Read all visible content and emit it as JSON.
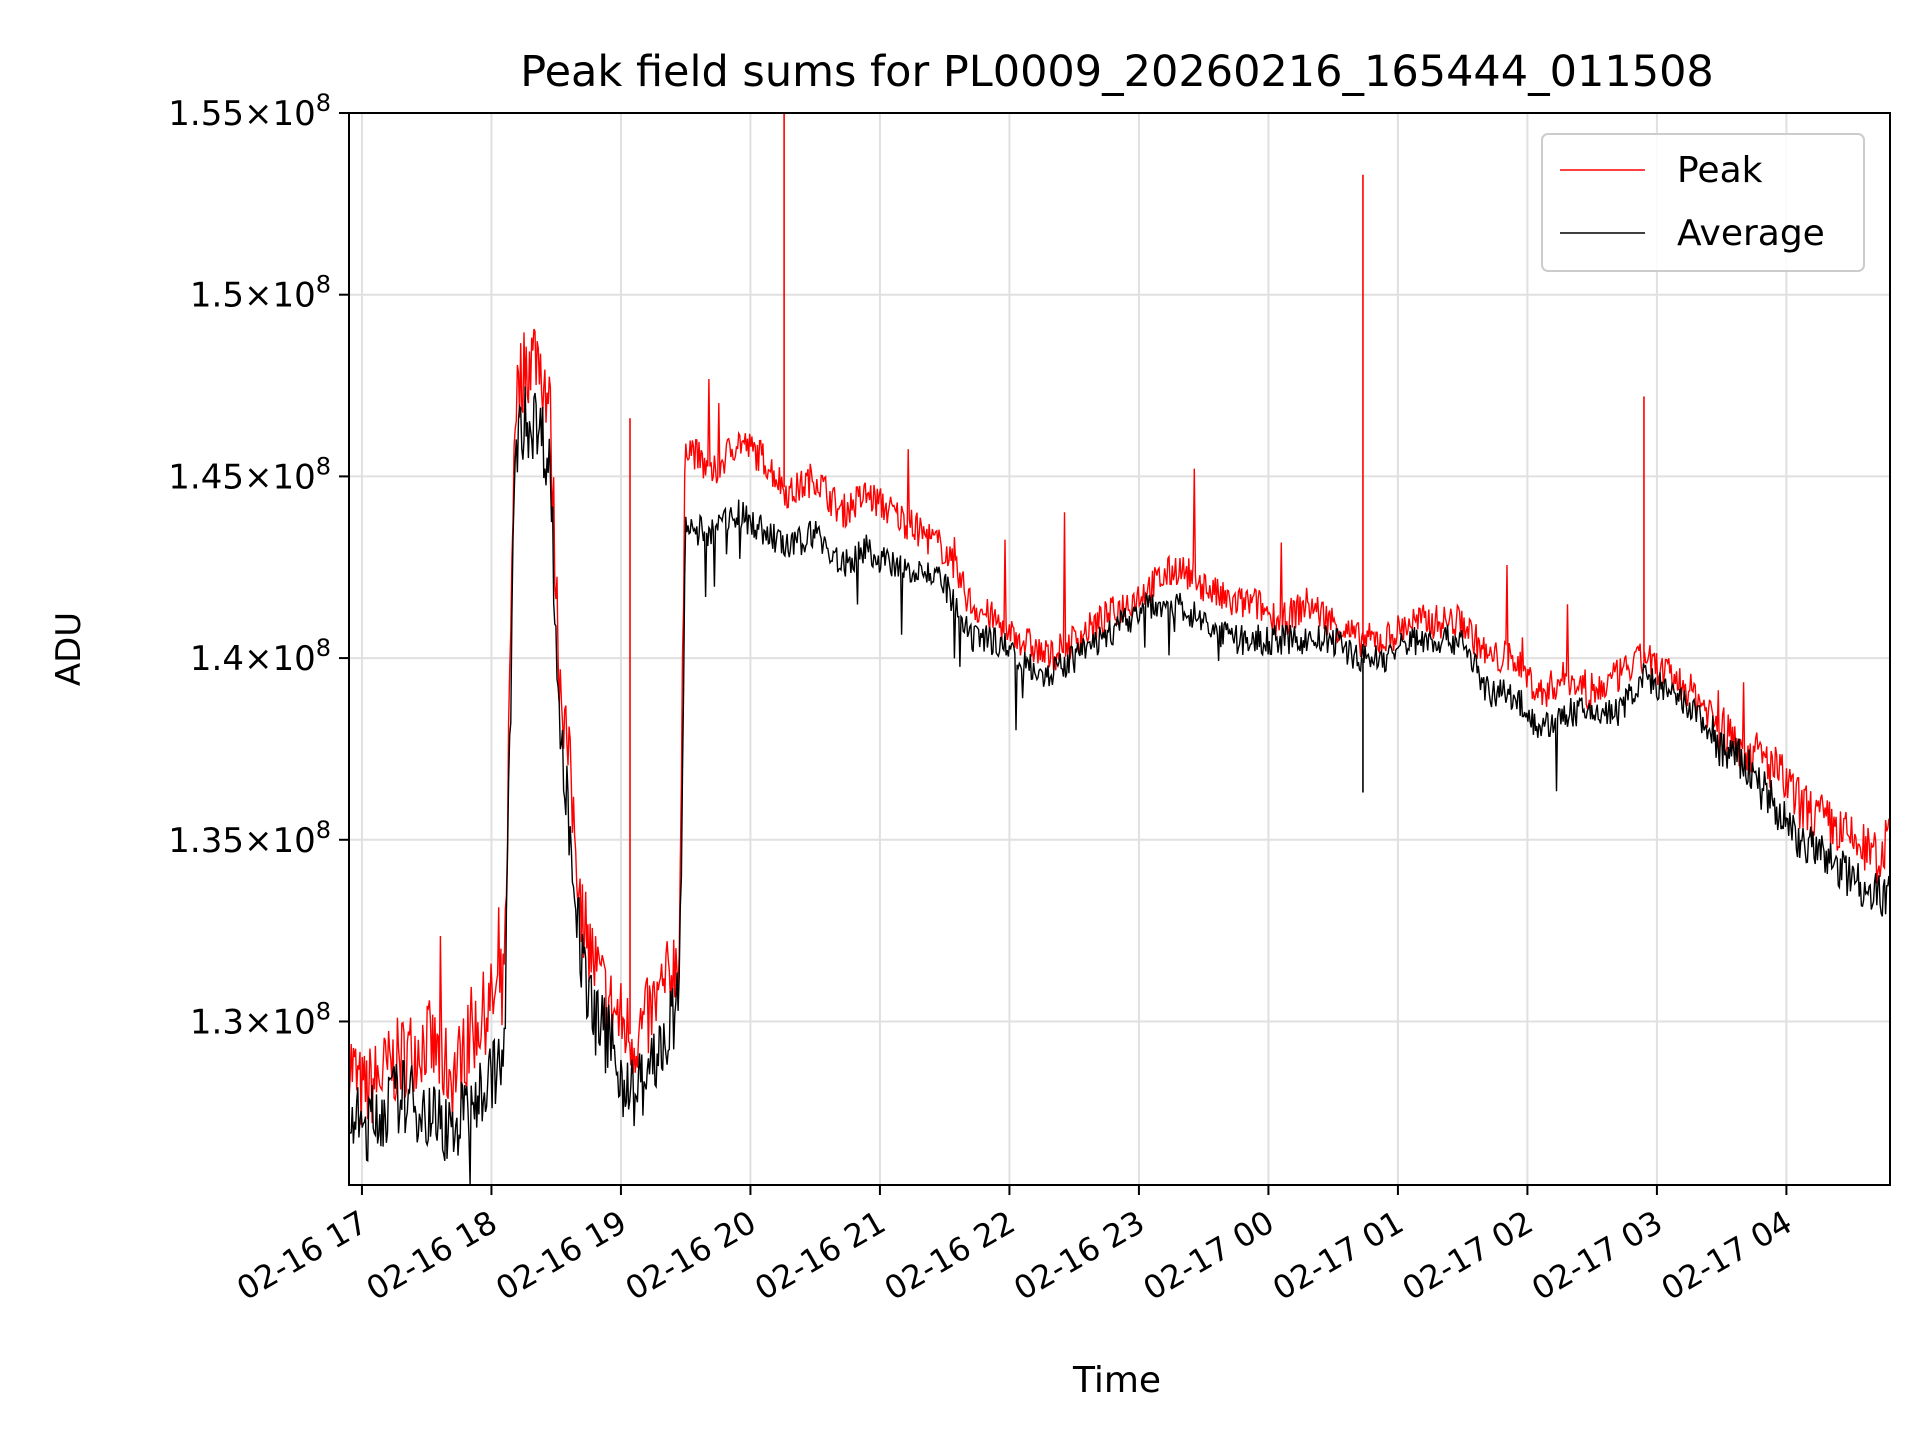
{
  "chart_data": {
    "type": "line",
    "title": "Peak field sums for PL0009_20260216_165444_011508",
    "xlabel": "Time",
    "ylabel": "ADU",
    "x_start": "2026-02-16 16:54",
    "x_end": "2026-02-17 04:48",
    "xlim_hours_since_start": [
      0,
      11.9
    ],
    "ylim": [
      125500000,
      155000000
    ],
    "grid": true,
    "legend_position": "top-right",
    "x_ticks": [
      "02-16 17",
      "02-16 18",
      "02-16 19",
      "02-16 20",
      "02-16 21",
      "02-16 22",
      "02-16 23",
      "02-17 00",
      "02-17 01",
      "02-17 02",
      "02-17 03",
      "02-17 04"
    ],
    "y_ticks": [
      {
        "value": 130000000,
        "mantissa": "1.3",
        "exp": "8"
      },
      {
        "value": 135000000,
        "mantissa": "1.35",
        "exp": "8"
      },
      {
        "value": 140000000,
        "mantissa": "1.4",
        "exp": "8"
      },
      {
        "value": 145000000,
        "mantissa": "1.45",
        "exp": "8"
      },
      {
        "value": 150000000,
        "mantissa": "1.5",
        "exp": "8"
      },
      {
        "value": 155000000,
        "mantissa": "1.55",
        "exp": "8"
      }
    ],
    "series": [
      {
        "name": "Peak",
        "color": "#ff0000",
        "x_hours": [
          0,
          0.1,
          0.25,
          0.4,
          0.6,
          0.8,
          1.0,
          1.2,
          1.28,
          1.35,
          1.45,
          1.55,
          1.62,
          1.7,
          1.8,
          1.9,
          2.0,
          2.1,
          2.2,
          2.3,
          2.45,
          2.55,
          2.6,
          2.8,
          3.0,
          3.2,
          3.4,
          3.6,
          3.8,
          4.0,
          4.2,
          4.4,
          4.6,
          4.8,
          5.0,
          5.2,
          5.4,
          5.6,
          5.8,
          6.0,
          6.2,
          6.4,
          6.6,
          6.8,
          7.0,
          7.2,
          7.4,
          7.6,
          7.8,
          8.0,
          8.2,
          8.4,
          8.6,
          8.8,
          9.0,
          9.2,
          9.4,
          9.6,
          9.8,
          10.0,
          10.2,
          10.4,
          10.6,
          10.8,
          11.0,
          11.2,
          11.4,
          11.6,
          11.8,
          11.9
        ],
        "values": [
          129000000,
          128000000,
          128500000,
          129000000,
          129500000,
          128500000,
          130000000,
          131000000,
          147000000,
          148000000,
          148500000,
          147000000,
          140000000,
          137000000,
          133000000,
          131500000,
          130500000,
          130000000,
          129500000,
          130000000,
          131000000,
          132000000,
          146000000,
          145000000,
          146000000,
          145500000,
          144500000,
          145000000,
          144000000,
          144500000,
          144000000,
          143500000,
          143000000,
          141500000,
          141000000,
          140500000,
          140000000,
          140500000,
          141000000,
          141500000,
          142000000,
          142500000,
          142000000,
          141500000,
          141500000,
          141000000,
          141500000,
          141000000,
          140500000,
          140500000,
          141000000,
          141000000,
          141000000,
          140000000,
          140000000,
          139000000,
          139500000,
          139000000,
          139500000,
          140000000,
          139500000,
          139000000,
          138000000,
          137500000,
          137000000,
          136000000,
          135500000,
          135000000,
          134500000,
          135000000
        ]
      },
      {
        "name": "Average",
        "color": "#000000",
        "x_hours": [
          0,
          0.1,
          0.25,
          0.4,
          0.6,
          0.8,
          1.0,
          1.2,
          1.28,
          1.35,
          1.45,
          1.55,
          1.62,
          1.7,
          1.8,
          1.9,
          2.0,
          2.1,
          2.2,
          2.3,
          2.45,
          2.55,
          2.6,
          2.8,
          3.0,
          3.2,
          3.4,
          3.6,
          3.8,
          4.0,
          4.2,
          4.4,
          4.6,
          4.8,
          5.0,
          5.2,
          5.4,
          5.6,
          5.8,
          6.0,
          6.2,
          6.4,
          6.6,
          6.8,
          7.0,
          7.2,
          7.4,
          7.6,
          7.8,
          8.0,
          8.2,
          8.4,
          8.6,
          8.8,
          9.0,
          9.2,
          9.4,
          9.6,
          9.8,
          10.0,
          10.2,
          10.4,
          10.6,
          10.8,
          11.0,
          11.2,
          11.4,
          11.6,
          11.8,
          11.9
        ],
        "values": [
          127500000,
          127000000,
          127500000,
          128000000,
          127500000,
          127000000,
          128000000,
          129000000,
          145500000,
          146500000,
          146500000,
          145500000,
          138500000,
          135500000,
          131500000,
          130000000,
          129500000,
          128500000,
          128000000,
          128500000,
          129500000,
          130500000,
          143500000,
          143500000,
          144000000,
          143500000,
          143000000,
          143500000,
          142500000,
          143000000,
          142500000,
          142500000,
          142000000,
          140500000,
          140500000,
          140000000,
          139500000,
          140000000,
          140500000,
          141000000,
          141500000,
          141500000,
          141000000,
          140500000,
          140500000,
          140500000,
          140500000,
          140500000,
          140000000,
          140000000,
          140500000,
          140500000,
          140500000,
          139000000,
          139000000,
          138000000,
          138500000,
          138500000,
          138500000,
          139500000,
          139000000,
          138500000,
          137500000,
          137000000,
          136000000,
          135000000,
          134500000,
          134000000,
          133500000,
          133500000
        ]
      }
    ],
    "annotations": [
      {
        "series": "Peak",
        "x_hours": 3.36,
        "value": 155000000
      },
      {
        "series": "Peak",
        "x_hours": 7.83,
        "value": 153300000
      },
      {
        "series": "Peak",
        "x_hours": 10.0,
        "value": 147200000
      },
      {
        "series": "Peak",
        "x_hours": 2.17,
        "value": 146600000
      },
      {
        "series": "Average",
        "x_hours": 7.83,
        "value": 136300000
      }
    ]
  }
}
